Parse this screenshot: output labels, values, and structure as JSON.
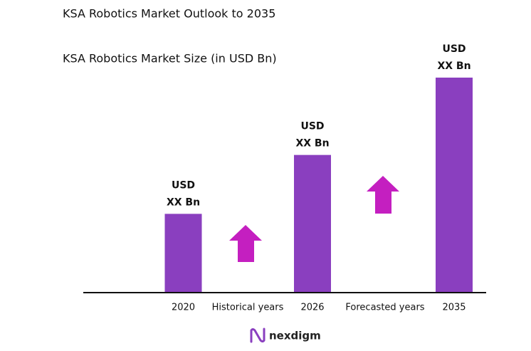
{
  "chart_data": {
    "type": "bar",
    "title": "KSA Robotics Market Outlook to 2035",
    "subtitle": "KSA Robotics Market Size (in USD Bn)",
    "categories": [
      "2020",
      "2026",
      "2035"
    ],
    "values": [
      110,
      193,
      302
    ],
    "value_labels": [
      [
        "USD",
        "XX Bn"
      ],
      [
        "USD",
        "XX Bn"
      ],
      [
        "USD",
        "XX Bn"
      ]
    ],
    "color": "#8a3fbf",
    "annotations": [
      "Historical years",
      "Forecasted years"
    ],
    "logo": "nexdigm"
  }
}
